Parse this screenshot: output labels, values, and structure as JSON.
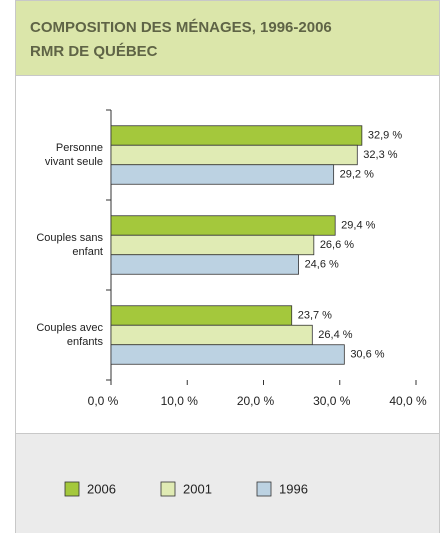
{
  "chart_data": {
    "type": "bar",
    "orientation": "horizontal",
    "title": "COMPOSITION DES MÉNAGES, 1996-2006",
    "subtitle": "RMR DE QUÉBEC",
    "categories": [
      "Personne\nvivant seule",
      "Couples sans\nenfant",
      "Couples avec\nenfants"
    ],
    "series": [
      {
        "name": "2006",
        "color": "#a4c83c",
        "values": [
          32.9,
          29.4,
          23.7
        ],
        "value_labels": [
          "32,9 %",
          "29,4 %",
          "23,7 %"
        ]
      },
      {
        "name": "2001",
        "color": "#e0ebb4",
        "values": [
          32.3,
          26.6,
          26.4
        ],
        "value_labels": [
          "32,3 %",
          "26,6 %",
          "26,4 %"
        ]
      },
      {
        "name": "1996",
        "color": "#bcd2e2",
        "values": [
          29.2,
          24.6,
          30.6
        ],
        "value_labels": [
          "29,2 %",
          "24,6 %",
          "30,6 %"
        ]
      }
    ],
    "xlim": [
      0,
      40
    ],
    "xticks": [
      {
        "value": 0,
        "label": "0,0 %"
      },
      {
        "value": 10,
        "label": "10,0 %"
      },
      {
        "value": 20,
        "label": "20,0 %"
      },
      {
        "value": 30,
        "label": "30,0 %"
      },
      {
        "value": 40,
        "label": "40,0 %"
      }
    ],
    "legend": "bottom"
  }
}
